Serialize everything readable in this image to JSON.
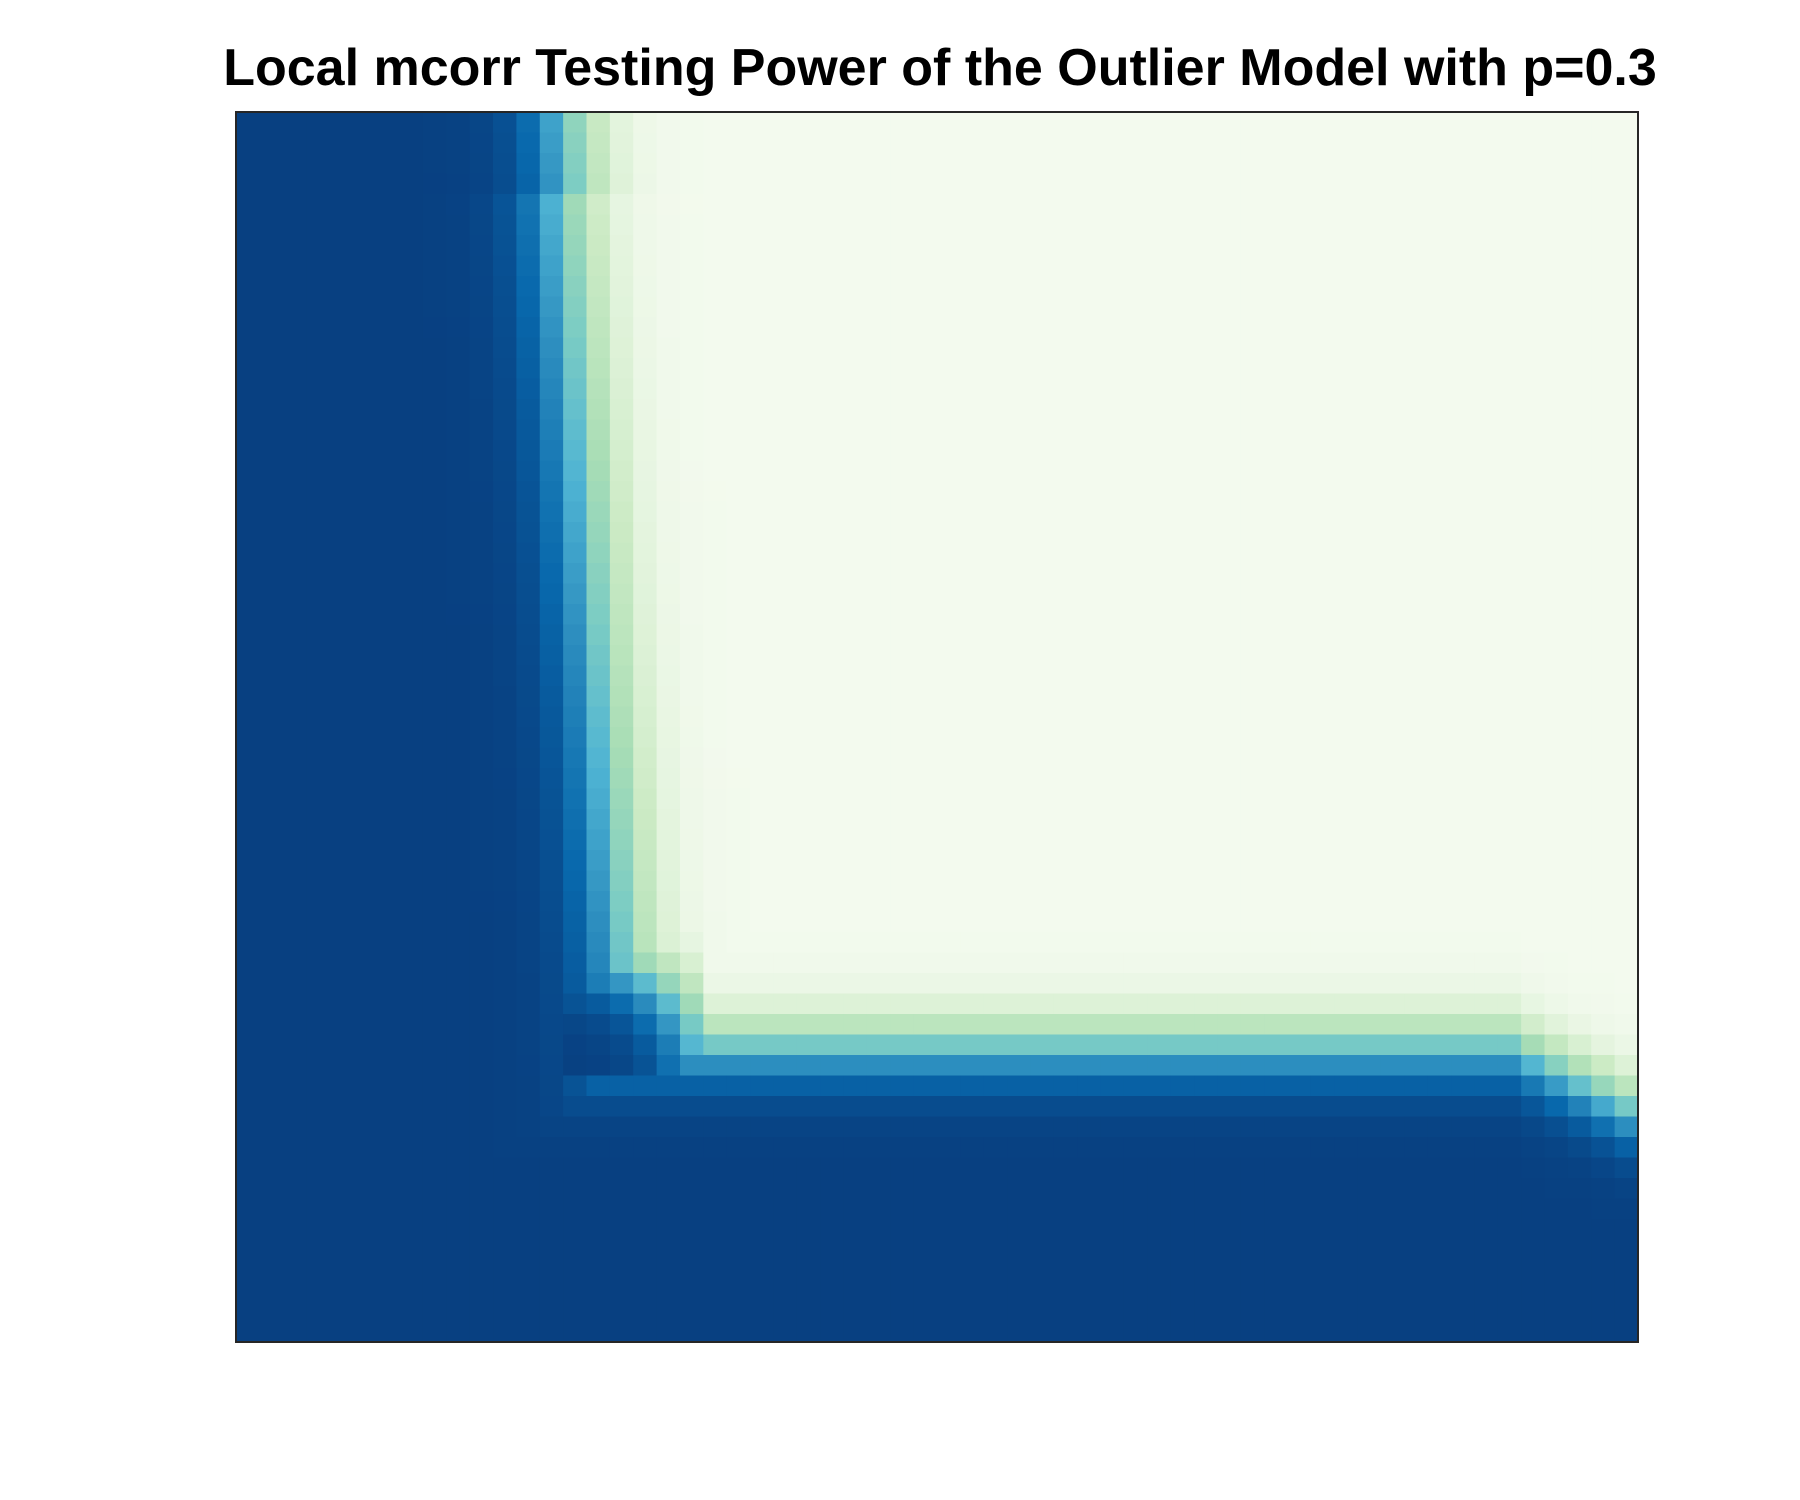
{
  "chart_data": {
    "type": "heatmap",
    "title": "Local mcorr Testing Power of the Outlier Model with p=0.3",
    "xlabel": "",
    "ylabel": "",
    "grid": false,
    "axis_ticks": false,
    "colorbar": false,
    "colormap": [
      "#f3faee",
      "#ccebc5",
      "#a8ddb5",
      "#7bccc4",
      "#4eb3d3",
      "#2b8cbe",
      "#0868ac",
      "#084081"
    ],
    "value_range": [
      0,
      1
    ],
    "n_cols": 60,
    "n_rows": 60,
    "rows_order": "top-to-bottom",
    "row_segments": [
      {
        "rows": [
          0,
          41
        ],
        "boundary_col": 13.0,
        "boundary_col_at_end": 16.0
      },
      {
        "rows": [
          42,
          49
        ],
        "boundary_row": 44.0,
        "boundary_row_end": 46.5
      },
      {
        "rows": [
          50,
          59
        ],
        "full_power": true
      }
    ],
    "description_values": {
      "full_power_region": "small column scale or large row scale",
      "zero_power_region": "large column scale and small row scale",
      "transition_width_cells": 3.5
    }
  }
}
